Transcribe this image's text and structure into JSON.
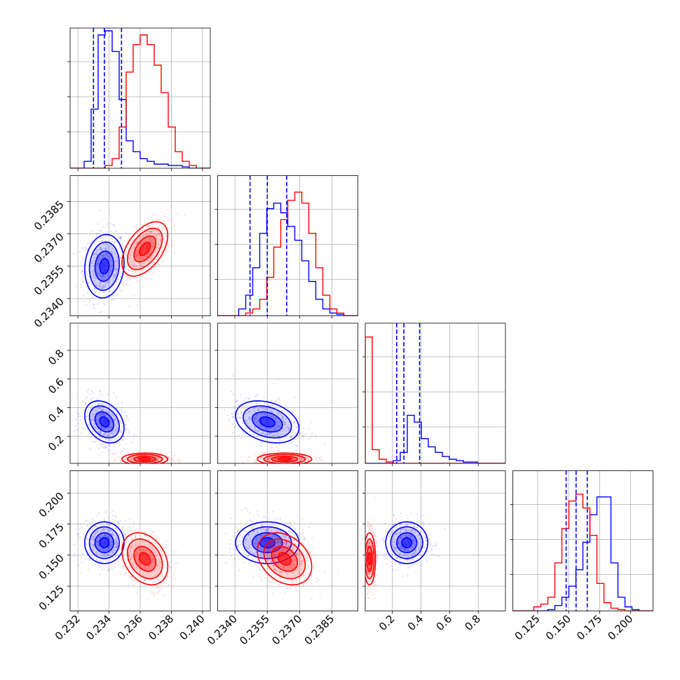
{
  "chart_data": {
    "type": "corner",
    "grid": true,
    "colors": {
      "series_a": "#0000ff",
      "series_b": "#ff0000",
      "grid": "#b0b0b0"
    },
    "params": [
      {
        "ticks": [
          0.232,
          0.234,
          0.236,
          0.238,
          0.24
        ],
        "tick_labels": [
          "0.232",
          "0.234",
          "0.236",
          "0.238",
          "0.240"
        ],
        "range": [
          0.2315,
          0.2405
        ]
      },
      {
        "ticks": [
          0.234,
          0.2355,
          0.237,
          0.2385
        ],
        "tick_labels": [
          "0.2340",
          "0.2355",
          "0.2370",
          "0.2385"
        ],
        "range": [
          0.2332,
          0.2397
        ]
      },
      {
        "ticks": [
          0.2,
          0.4,
          0.6,
          0.8
        ],
        "tick_labels": [
          "0.2",
          "0.4",
          "0.6",
          "0.8"
        ],
        "range": [
          0.01,
          0.99
        ]
      },
      {
        "ticks": [
          0.125,
          0.15,
          0.175,
          0.2
        ],
        "tick_labels": [
          "0.125",
          "0.150",
          "0.175",
          "0.200"
        ],
        "range": [
          0.105,
          0.218
        ]
      }
    ],
    "series": [
      {
        "color": "#0000ff",
        "means": [
          0.2337,
          0.2355,
          0.3,
          0.16
        ],
        "sds": [
          0.0006,
          0.0007,
          0.07,
          0.008
        ],
        "corr": [
          [
            1,
            0.1,
            -0.3,
            0
          ],
          [
            0.1,
            1,
            -0.3,
            0
          ],
          [
            -0.3,
            -0.3,
            1,
            0
          ],
          [
            0,
            0,
            0,
            1
          ]
        ],
        "quantiles": [
          [
            0.233,
            0.2337,
            0.2348
          ],
          [
            0.2347,
            0.2355,
            0.2364
          ],
          [
            0.23,
            0.28,
            0.39
          ],
          [
            0.148,
            0.156,
            0.165
          ]
        ],
        "histograms": [
          [
            0,
            0,
            0.05,
            0.43,
            0.97,
            1,
            0.85,
            0.5,
            0.2,
            0.12,
            0.07,
            0.05,
            0.03,
            0.03,
            0.02,
            0.02,
            0.01,
            0,
            0,
            0
          ],
          [
            0,
            0,
            0,
            0.05,
            0.15,
            0.35,
            0.6,
            0.78,
            0.82,
            0.75,
            0.65,
            0.55,
            0.4,
            0.25,
            0.12,
            0.05,
            0.02,
            0.01,
            0,
            0
          ],
          [
            0,
            0,
            0,
            0,
            0.02,
            0.08,
            0.35,
            0.3,
            0.18,
            0.12,
            0.08,
            0.05,
            0.03,
            0.02,
            0.01,
            0.01,
            0,
            0,
            0,
            0
          ],
          [
            0,
            0,
            0,
            0,
            0,
            0.01,
            0.04,
            0.1,
            0.18,
            0.3,
            0.5,
            0.7,
            0.83,
            0.83,
            0.35,
            0.1,
            0.03,
            0.01,
            0,
            0
          ]
        ]
      },
      {
        "color": "#ff0000",
        "means": [
          0.2363,
          0.2363,
          0.04,
          0.147
        ],
        "sds": [
          0.0007,
          0.0006,
          0.02,
          0.01
        ],
        "corr": [
          [
            1,
            0.5,
            0,
            -0.3
          ],
          [
            0.5,
            1,
            0,
            -0.3
          ],
          [
            0,
            0,
            1,
            0
          ],
          [
            -0.3,
            -0.3,
            0,
            1
          ]
        ],
        "quantiles": [
          [
            0.2358,
            0.2363,
            0.237
          ],
          [
            0.2356,
            0.2363,
            0.2369
          ],
          [
            0.02,
            0.04,
            0.07
          ],
          [
            0.138,
            0.147,
            0.157
          ]
        ],
        "histograms": [
          [
            0,
            0,
            0,
            0,
            0,
            0.02,
            0.07,
            0.3,
            0.7,
            0.9,
            0.97,
            0.9,
            0.75,
            0.55,
            0.3,
            0.12,
            0.05,
            0.02,
            0,
            0
          ],
          [
            0,
            0,
            0,
            0,
            0.02,
            0.05,
            0.12,
            0.28,
            0.5,
            0.7,
            0.84,
            0.9,
            0.82,
            0.6,
            0.35,
            0.15,
            0.05,
            0.02,
            0,
            0
          ],
          [
            0.92,
            0.1,
            0.03,
            0.01,
            0,
            0,
            0,
            0,
            0,
            0,
            0,
            0,
            0,
            0,
            0,
            0,
            0,
            0,
            0,
            0
          ],
          [
            0,
            0,
            0,
            0.03,
            0.05,
            0.1,
            0.35,
            0.6,
            0.8,
            0.85,
            0.75,
            0.55,
            0.2,
            0.06,
            0.02,
            0.01,
            0,
            0,
            0,
            0
          ]
        ]
      }
    ]
  }
}
